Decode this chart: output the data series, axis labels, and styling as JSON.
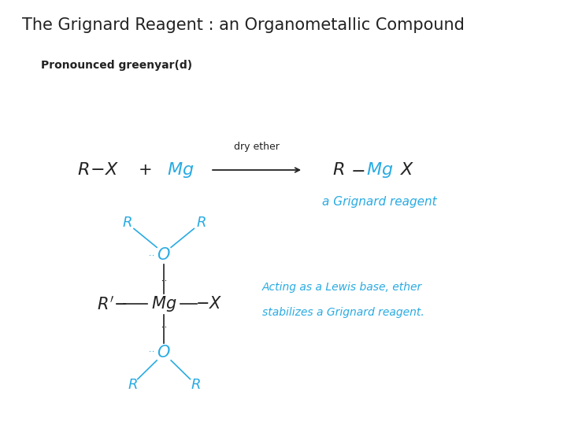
{
  "title": "The Grignard Reagent : an Organometallic Compound",
  "subtitle": "Pronounced greenyar(d)",
  "title_fontsize": 15,
  "subtitle_fontsize": 10,
  "bg_color": "#ffffff",
  "dark_color": "#222222",
  "blue_color": "#29abe2",
  "arrow_label": "dry ether",
  "grignard_label": "a Grignard reagent",
  "lewis_line1": "Acting as a Lewis base, ether",
  "lewis_line2": "stabilizes a Grignard reagent."
}
